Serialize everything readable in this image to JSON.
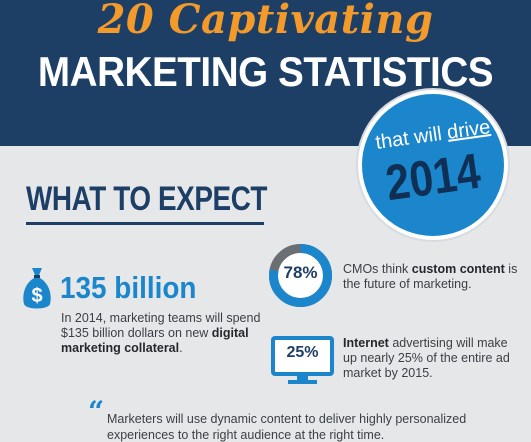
{
  "header": {
    "script_title": "20 Captivating",
    "main_title": "MARKETING STATISTICS"
  },
  "badge": {
    "sub_prefix": "that will ",
    "sub_emphasis": "drive",
    "year": "2014"
  },
  "section": {
    "heading": "WHAT TO EXPECT"
  },
  "stats": {
    "money": {
      "value": "135 billion",
      "text_1": "In 2014, marketing teams will spend $135 billion dollars on new ",
      "text_bold": "digital marketing collateral",
      "text_2": "."
    },
    "cmo": {
      "percent_label": "78%",
      "percent_value": 78,
      "text_1": "CMOs think ",
      "text_bold": "custom content",
      "text_2": " is the future of marketing."
    },
    "internet": {
      "percent_label": "25%",
      "text_bold": "Internet",
      "text_1": " advertising will make up nearly 25% of the entire ad market by 2015."
    }
  },
  "quote": {
    "mark": "“",
    "text": "Marketers will use dynamic content to deliver highly personalized experiences to the right audience at the right time."
  },
  "colors": {
    "navy": "#1d3f66",
    "blue": "#1b86cc",
    "orange": "#f39a2a",
    "background": "#e6e7e9",
    "donut_track": "#6b6e72"
  },
  "icons": [
    "money-bag-icon",
    "donut-chart-icon",
    "monitor-icon",
    "quote-icon"
  ]
}
